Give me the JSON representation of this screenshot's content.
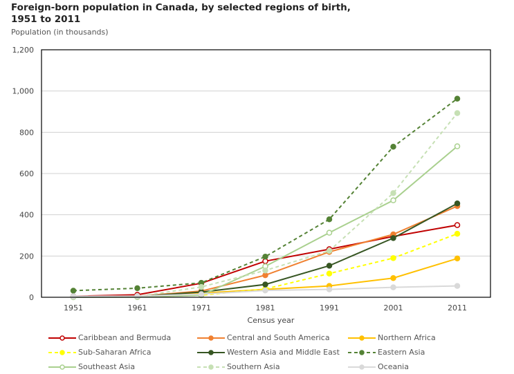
{
  "chart_data": {
    "type": "line",
    "title": "Foreign-born population in Canada, by selected regions of birth, 1951 to 2011",
    "ylabel": "Population (in thousands)",
    "xlabel": "Census year",
    "x": [
      "1951",
      "1961",
      "1971",
      "1981",
      "1991",
      "2001",
      "2011"
    ],
    "ylim": [
      0,
      1200
    ],
    "yticks": [
      "0",
      "200",
      "400",
      "600",
      "800",
      "1,000",
      "1,200"
    ],
    "grid": true,
    "legend": "bottom",
    "series": [
      {
        "name": "Caribbean and Bermuda",
        "color": "#c00000",
        "dash": false,
        "marker": "open",
        "values": [
          5,
          12,
          68,
          175,
          233,
          295,
          350
        ]
      },
      {
        "name": "Central and South America",
        "color": "#f08030",
        "dash": false,
        "marker": "filled",
        "values": [
          2,
          5,
          30,
          107,
          220,
          305,
          442
        ]
      },
      {
        "name": "Northern Africa",
        "color": "#ffc000",
        "dash": false,
        "marker": "filled",
        "values": [
          2,
          3,
          20,
          38,
          55,
          93,
          188
        ]
      },
      {
        "name": "Sub-Saharan Africa",
        "color": "#ffff00",
        "dash": true,
        "marker": "filled",
        "values": [
          1,
          2,
          10,
          40,
          115,
          190,
          308
        ]
      },
      {
        "name": "Western Asia and Middle East",
        "color": "#375623",
        "dash": false,
        "marker": "filled",
        "values": [
          3,
          4,
          25,
          62,
          153,
          287,
          455
        ]
      },
      {
        "name": "Eastern Asia",
        "color": "#548235",
        "dash": true,
        "marker": "filled",
        "values": [
          32,
          44,
          70,
          197,
          378,
          730,
          963
        ]
      },
      {
        "name": "Southeast Asia",
        "color": "#a9d08e",
        "dash": false,
        "marker": "open",
        "values": [
          0,
          1,
          10,
          150,
          313,
          470,
          732
        ]
      },
      {
        "name": "Southern Asia",
        "color": "#c6e0b4",
        "dash": true,
        "marker": "filled",
        "values": [
          1,
          4,
          50,
          130,
          225,
          505,
          893
        ]
      },
      {
        "name": "Oceania",
        "color": "#d9d9d9",
        "dash": false,
        "marker": "filled",
        "values": [
          5,
          6,
          15,
          33,
          38,
          48,
          55
        ]
      }
    ]
  }
}
